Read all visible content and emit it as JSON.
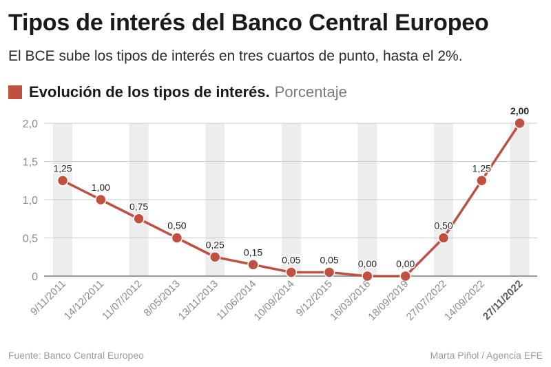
{
  "header": {
    "title": "Tipos de interés del Banco Central Europeo",
    "subtitle": "El BCE sube los tipos de interés en tres cuartos de punto, hasta el 2%."
  },
  "legend": {
    "label": "Evolución de los tipos de interés.",
    "unit": "Porcentaje"
  },
  "footer": {
    "source": "Fuente: Banco Central Europeo",
    "credit": "Marta Piñol / Agencia EFE"
  },
  "colors": {
    "accent": "#c0503f",
    "band": "#ededed",
    "grid": "#cccccc",
    "axis_text": "#8a8a8a"
  },
  "chart_data": {
    "type": "line",
    "categories": [
      "9/11/2011",
      "14/12/2011",
      "11/07/2012",
      "8/05/2013",
      "13/11/2013",
      "11/06/2014",
      "10/09/2014",
      "9/12/2015",
      "16/03/2016",
      "18/09/2019",
      "27/07/2022",
      "14/09/2022",
      "27/11/2022"
    ],
    "values": [
      1.25,
      1.0,
      0.75,
      0.5,
      0.25,
      0.15,
      0.05,
      0.05,
      0.0,
      0.0,
      0.5,
      1.25,
      2.0
    ],
    "value_labels": [
      "1,25",
      "1,00",
      "0,75",
      "0,50",
      "0,25",
      "0,15",
      "0,05",
      "0,05",
      "0,00",
      "0,00",
      "0,50",
      "1,25",
      "2,00"
    ],
    "y_ticks": [
      0,
      0.5,
      1.0,
      1.5,
      2.0
    ],
    "y_tick_labels": [
      "0",
      "0,5",
      "1,0",
      "1,5",
      "2,0"
    ],
    "ylim": [
      0,
      2.0
    ],
    "grid": true,
    "highlight_last": true
  }
}
